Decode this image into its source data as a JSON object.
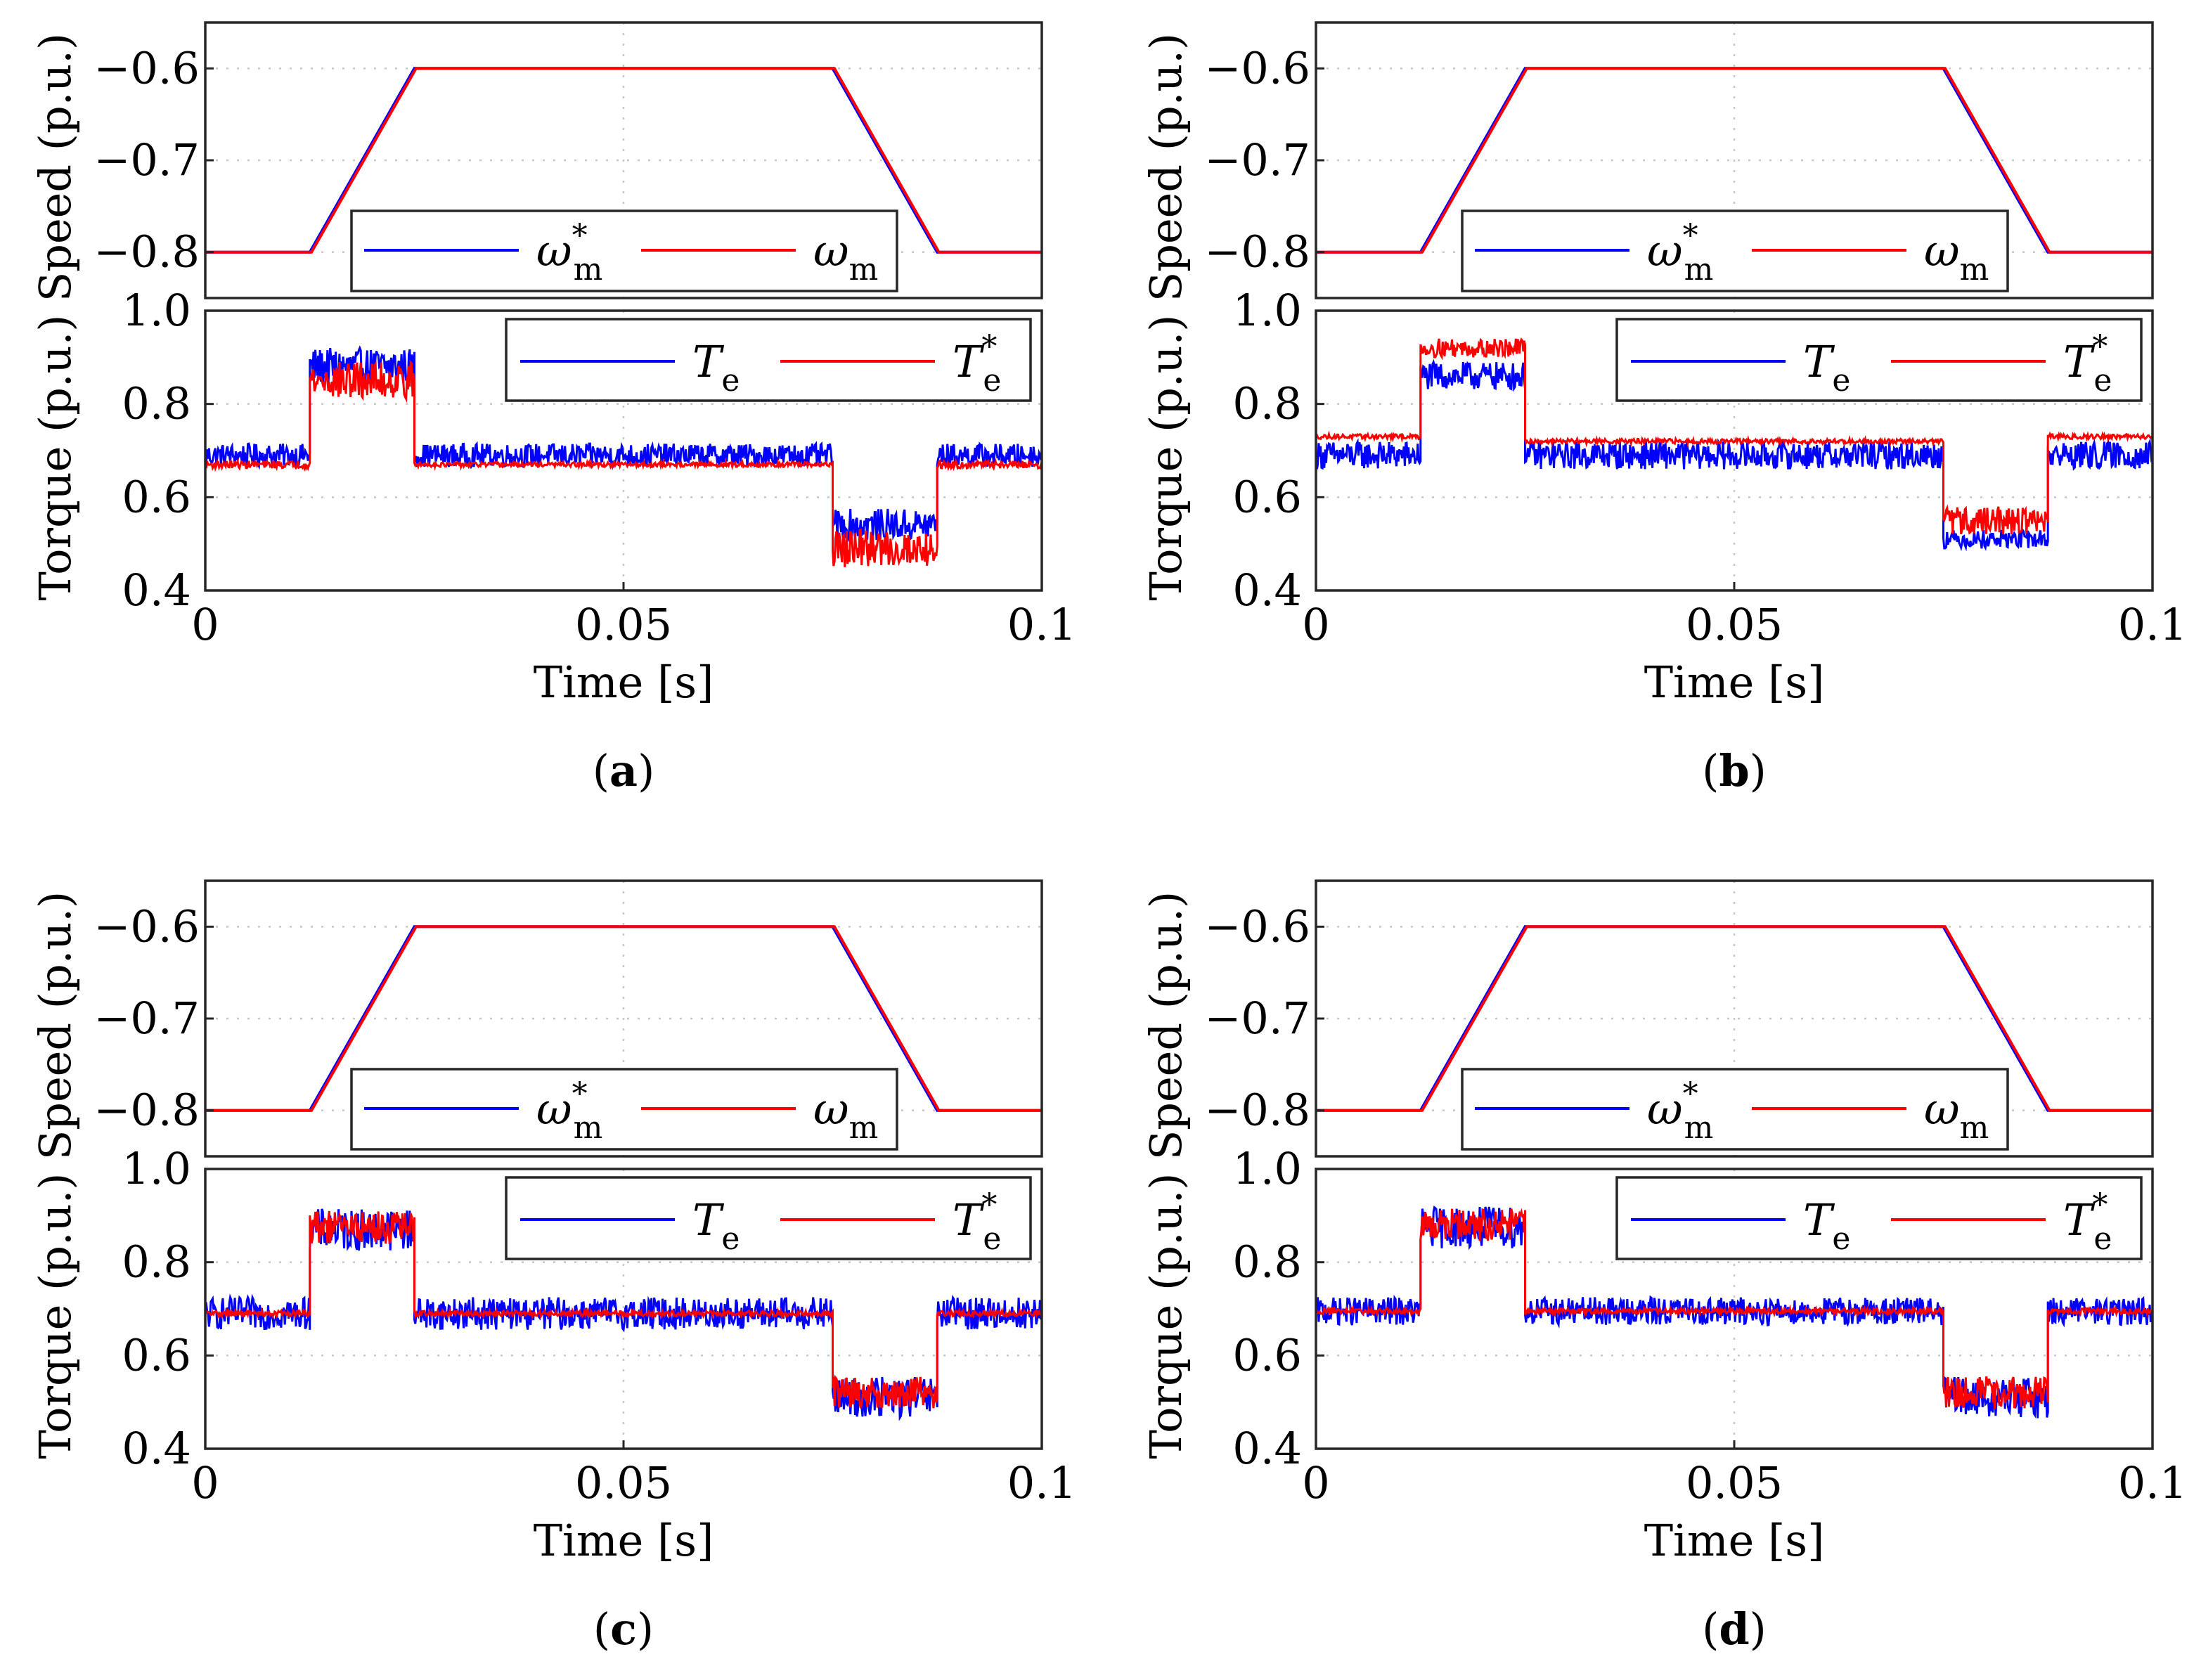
{
  "chart_data": [
    {
      "panel_label": "a",
      "type": "line",
      "speed": {
        "ylabel": "Speed (p.u.)",
        "ylim": [
          -0.85,
          -0.55
        ],
        "yticks": [
          -0.8,
          -0.7,
          -0.6
        ],
        "ytick_labels": [
          "−0.8",
          "−0.7",
          "−0.6"
        ],
        "series": [
          {
            "name": "ω*m",
            "color": "#0000ff",
            "x": [
              0,
              0.0125,
              0.025,
              0.075,
              0.0875,
              0.1
            ],
            "y": [
              -0.8,
              -0.8,
              -0.6,
              -0.6,
              -0.8,
              -0.8
            ]
          },
          {
            "name": "ωm",
            "color": "#ff0000",
            "x": [
              0,
              0.0127,
              0.0252,
              0.0752,
              0.0877,
              0.1
            ],
            "y": [
              -0.8,
              -0.8,
              -0.6,
              -0.6,
              -0.8,
              -0.8
            ]
          }
        ],
        "legend": [
          {
            "main": "ω",
            "sub": "m",
            "sup": "*"
          },
          {
            "main": "ω",
            "sub": "m",
            "sup": ""
          }
        ]
      },
      "torque": {
        "ylabel": "Torque (p.u.)",
        "ylim": [
          0.4,
          1.0
        ],
        "yticks": [
          0.4,
          0.6,
          0.8,
          1.0
        ],
        "ytick_labels": [
          "0.4",
          "0.6",
          "0.8",
          "1.0"
        ],
        "segments": [
          [
            0,
            0.0125
          ],
          [
            0.0125,
            0.025
          ],
          [
            0.025,
            0.075
          ],
          [
            0.075,
            0.0875
          ],
          [
            0.0875,
            0.1
          ]
        ],
        "series": [
          {
            "name": "Te",
            "color": "#0000ff",
            "mean": [
              0.69,
              0.88,
              0.69,
              0.54,
              0.69
            ],
            "ripple": [
              0.025,
              0.04,
              0.025,
              0.035,
              0.025
            ]
          },
          {
            "name": "T*e",
            "color": "#ff0000",
            "mean": [
              0.67,
              0.85,
              0.67,
              0.49,
              0.67
            ],
            "ripple": [
              0.008,
              0.04,
              0.005,
              0.04,
              0.008
            ]
          }
        ],
        "legend": [
          {
            "main": "T",
            "sub": "e",
            "sup": ""
          },
          {
            "main": "T",
            "sub": "e",
            "sup": "*"
          }
        ]
      },
      "xlabel": "Time [s]",
      "xlim": [
        0,
        0.1
      ],
      "xticks": [
        0,
        0.05,
        0.1
      ],
      "xtick_labels": [
        "0",
        "0.05",
        "0.1"
      ]
    },
    {
      "panel_label": "b",
      "type": "line",
      "speed": {
        "ylabel": "Speed (p.u.)",
        "ylim": [
          -0.85,
          -0.55
        ],
        "yticks": [
          -0.8,
          -0.7,
          -0.6
        ],
        "ytick_labels": [
          "−0.8",
          "−0.7",
          "−0.6"
        ],
        "series": [
          {
            "name": "ω*m",
            "color": "#0000ff",
            "x": [
              0,
              0.0125,
              0.025,
              0.075,
              0.0875,
              0.1
            ],
            "y": [
              -0.8,
              -0.8,
              -0.6,
              -0.6,
              -0.8,
              -0.8
            ]
          },
          {
            "name": "ωm",
            "color": "#ff0000",
            "x": [
              0,
              0.0127,
              0.0252,
              0.0752,
              0.0877,
              0.1
            ],
            "y": [
              -0.8,
              -0.8,
              -0.6,
              -0.6,
              -0.8,
              -0.8
            ]
          }
        ],
        "legend": [
          {
            "main": "ω",
            "sub": "m",
            "sup": "*"
          },
          {
            "main": "ω",
            "sub": "m",
            "sup": ""
          }
        ]
      },
      "torque": {
        "ylabel": "Torque (p.u.)",
        "ylim": [
          0.4,
          1.0
        ],
        "yticks": [
          0.4,
          0.6,
          0.8,
          1.0
        ],
        "ytick_labels": [
          "0.4",
          "0.6",
          "0.8",
          "1.0"
        ],
        "segments": [
          [
            0,
            0.0125
          ],
          [
            0.0125,
            0.025
          ],
          [
            0.025,
            0.075
          ],
          [
            0.075,
            0.0875
          ],
          [
            0.0875,
            0.1
          ]
        ],
        "series": [
          {
            "name": "Te",
            "color": "#0000ff",
            "mean": [
              0.69,
              0.86,
              0.69,
              0.51,
              0.69
            ],
            "ripple": [
              0.03,
              0.03,
              0.03,
              0.02,
              0.03
            ]
          },
          {
            "name": "T*e",
            "color": "#ff0000",
            "mean": [
              0.73,
              0.92,
              0.72,
              0.55,
              0.73
            ],
            "ripple": [
              0.005,
              0.02,
              0.005,
              0.03,
              0.005
            ]
          }
        ],
        "legend": [
          {
            "main": "T",
            "sub": "e",
            "sup": ""
          },
          {
            "main": "T",
            "sub": "e",
            "sup": "*"
          }
        ]
      },
      "xlabel": "Time [s]",
      "xlim": [
        0,
        0.1
      ],
      "xticks": [
        0,
        0.05,
        0.1
      ],
      "xtick_labels": [
        "0",
        "0.05",
        "0.1"
      ]
    },
    {
      "panel_label": "c",
      "type": "line",
      "speed": {
        "ylabel": "Speed (p.u.)",
        "ylim": [
          -0.85,
          -0.55
        ],
        "yticks": [
          -0.8,
          -0.7,
          -0.6
        ],
        "ytick_labels": [
          "−0.8",
          "−0.7",
          "−0.6"
        ],
        "series": [
          {
            "name": "ω*m",
            "color": "#0000ff",
            "x": [
              0,
              0.0125,
              0.025,
              0.075,
              0.0875,
              0.1
            ],
            "y": [
              -0.8,
              -0.8,
              -0.6,
              -0.6,
              -0.8,
              -0.8
            ]
          },
          {
            "name": "ωm",
            "color": "#ff0000",
            "x": [
              0,
              0.0127,
              0.0252,
              0.0752,
              0.0877,
              0.1
            ],
            "y": [
              -0.8,
              -0.8,
              -0.6,
              -0.6,
              -0.8,
              -0.8
            ]
          }
        ],
        "legend": [
          {
            "main": "ω",
            "sub": "m",
            "sup": "*"
          },
          {
            "main": "ω",
            "sub": "m",
            "sup": ""
          }
        ]
      },
      "torque": {
        "ylabel": "Torque (p.u.)",
        "ylim": [
          0.4,
          1.0
        ],
        "yticks": [
          0.4,
          0.6,
          0.8,
          1.0
        ],
        "ytick_labels": [
          "0.4",
          "0.6",
          "0.8",
          "1.0"
        ],
        "segments": [
          [
            0,
            0.0125
          ],
          [
            0.0125,
            0.025
          ],
          [
            0.025,
            0.075
          ],
          [
            0.075,
            0.0875
          ],
          [
            0.0875,
            0.1
          ]
        ],
        "series": [
          {
            "name": "Te",
            "color": "#0000ff",
            "mean": [
              0.69,
              0.87,
              0.69,
              0.51,
              0.69
            ],
            "ripple": [
              0.035,
              0.045,
              0.035,
              0.045,
              0.035
            ]
          },
          {
            "name": "T*e",
            "color": "#ff0000",
            "mean": [
              0.69,
              0.875,
              0.69,
              0.52,
              0.69
            ],
            "ripple": [
              0.006,
              0.035,
              0.006,
              0.035,
              0.006
            ]
          }
        ],
        "legend": [
          {
            "main": "T",
            "sub": "e",
            "sup": ""
          },
          {
            "main": "T",
            "sub": "e",
            "sup": "*"
          }
        ]
      },
      "xlabel": "Time [s]",
      "xlim": [
        0,
        0.1
      ],
      "xticks": [
        0,
        0.05,
        0.1
      ],
      "xtick_labels": [
        "0",
        "0.05",
        "0.1"
      ]
    },
    {
      "panel_label": "d",
      "type": "line",
      "speed": {
        "ylabel": "Speed (p.u.)",
        "ylim": [
          -0.85,
          -0.55
        ],
        "yticks": [
          -0.8,
          -0.7,
          -0.6
        ],
        "ytick_labels": [
          "−0.8",
          "−0.7",
          "−0.6"
        ],
        "series": [
          {
            "name": "ω*m",
            "color": "#0000ff",
            "x": [
              0,
              0.0125,
              0.025,
              0.075,
              0.0875,
              0.1
            ],
            "y": [
              -0.8,
              -0.8,
              -0.6,
              -0.6,
              -0.8,
              -0.8
            ]
          },
          {
            "name": "ωm",
            "color": "#ff0000",
            "x": [
              0,
              0.0127,
              0.0252,
              0.0752,
              0.0877,
              0.1
            ],
            "y": [
              -0.8,
              -0.8,
              -0.6,
              -0.6,
              -0.8,
              -0.8
            ]
          }
        ],
        "legend": [
          {
            "main": "ω",
            "sub": "m",
            "sup": "*"
          },
          {
            "main": "ω",
            "sub": "m",
            "sup": ""
          }
        ]
      },
      "torque": {
        "ylabel": "Torque (p.u.)",
        "ylim": [
          0.4,
          1.0
        ],
        "yticks": [
          0.4,
          0.6,
          0.8,
          1.0
        ],
        "ytick_labels": [
          "0.4",
          "0.6",
          "0.8",
          "1.0"
        ],
        "segments": [
          [
            0,
            0.0125
          ],
          [
            0.0125,
            0.025
          ],
          [
            0.025,
            0.075
          ],
          [
            0.075,
            0.0875
          ],
          [
            0.0875,
            0.1
          ]
        ],
        "series": [
          {
            "name": "Te",
            "color": "#0000ff",
            "mean": [
              0.695,
              0.875,
              0.695,
              0.51,
              0.695
            ],
            "ripple": [
              0.03,
              0.045,
              0.03,
              0.045,
              0.03
            ]
          },
          {
            "name": "T*e",
            "color": "#ff0000",
            "mean": [
              0.695,
              0.88,
              0.695,
              0.52,
              0.695
            ],
            "ripple": [
              0.006,
              0.035,
              0.006,
              0.035,
              0.006
            ]
          }
        ],
        "legend": [
          {
            "main": "T",
            "sub": "e",
            "sup": ""
          },
          {
            "main": "T",
            "sub": "e",
            "sup": "*"
          }
        ]
      },
      "xlabel": "Time [s]",
      "xlim": [
        0,
        0.1
      ],
      "xticks": [
        0,
        0.05,
        0.1
      ],
      "xtick_labels": [
        "0",
        "0.05",
        "0.1"
      ]
    }
  ]
}
